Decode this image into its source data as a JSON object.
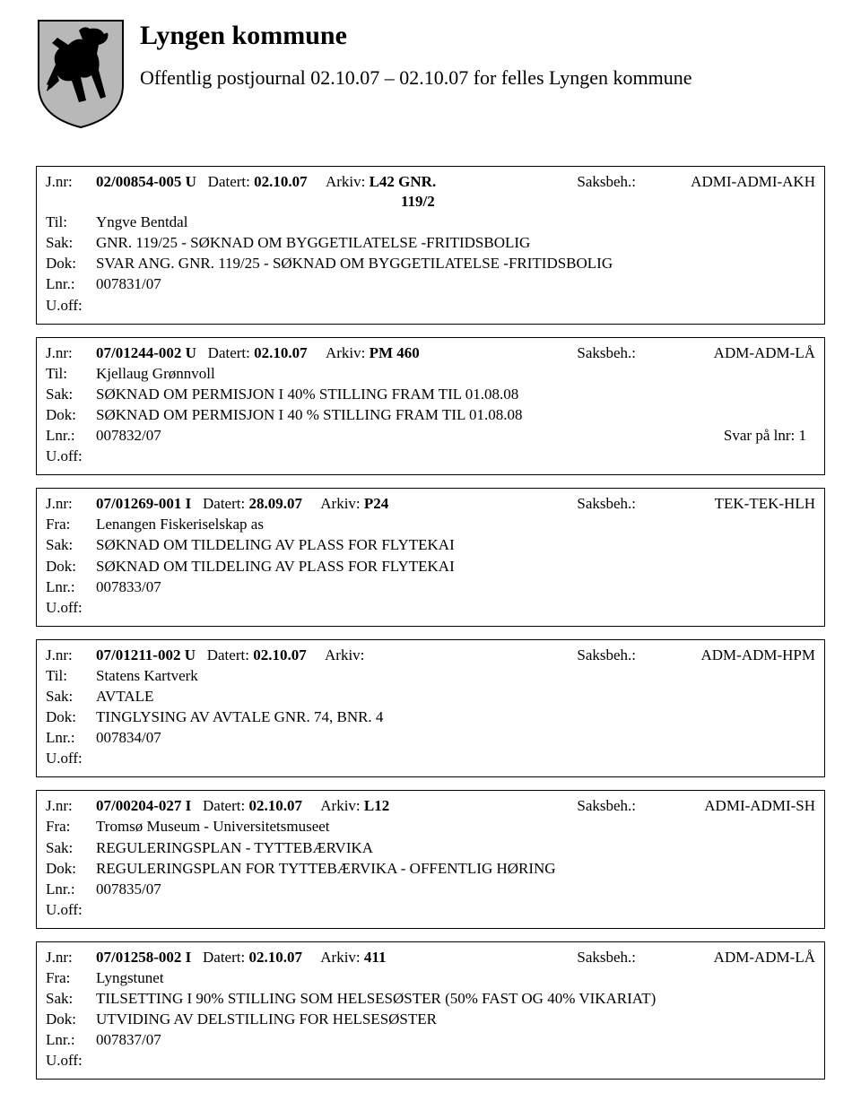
{
  "header": {
    "org_name": "Lyngen kommune",
    "subtitle": "Offentlig postjournal 02.10.07 – 02.10.07 for felles Lyngen kommune"
  },
  "labels": {
    "jnr": "J.nr:",
    "datert": "Datert:",
    "arkiv": "Arkiv:",
    "saksbeh": "Saksbeh.:",
    "til": "Til:",
    "fra": "Fra:",
    "sak": "Sak:",
    "dok": "Dok:",
    "lnr": "Lnr.:",
    "uoff": "U.off:"
  },
  "entries": [
    {
      "jnr": "02/00854-005 U",
      "datert": "02.10.07",
      "arkiv": "L42  GNR.",
      "arkiv_line2": "119/2",
      "saksbeh": "ADMI-ADMI-AKH",
      "party_label": "Til:",
      "party": "Yngve Bentdal",
      "sak": "GNR. 119/25 - SØKNAD OM BYGGETILATELSE -FRITIDSBOLIG",
      "dok": "SVAR ANG. GNR. 119/25 - SØKNAD OM BYGGETILATELSE -FRITIDSBOLIG",
      "lnr": "007831/07",
      "lnr_note": "",
      "uoff": ""
    },
    {
      "jnr": "07/01244-002 U",
      "datert": "02.10.07",
      "arkiv": "PM 460",
      "arkiv_line2": "",
      "saksbeh": "ADM-ADM-LÅ",
      "party_label": "Til:",
      "party": "Kjellaug Grønnvoll",
      "sak": "SØKNAD OM PERMISJON I 40% STILLING FRAM TIL 01.08.08",
      "dok": "SØKNAD OM PERMISJON I 40 % STILLING FRAM TIL 01.08.08",
      "lnr": "007832/07",
      "lnr_note": "Svar på lnr: 1",
      "uoff": ""
    },
    {
      "jnr": "07/01269-001 I",
      "datert": "28.09.07",
      "arkiv": "P24",
      "arkiv_line2": "",
      "saksbeh": "TEK-TEK-HLH",
      "party_label": "Fra:",
      "party": "Lenangen Fiskeriselskap as",
      "sak": "SØKNAD OM TILDELING AV PLASS FOR FLYTEKAI",
      "dok": "SØKNAD OM TILDELING AV PLASS FOR FLYTEKAI",
      "lnr": "007833/07",
      "lnr_note": "",
      "uoff": ""
    },
    {
      "jnr": "07/01211-002 U",
      "datert": "02.10.07",
      "arkiv": "",
      "arkiv_line2": "",
      "saksbeh": "ADM-ADM-HPM",
      "party_label": "Til:",
      "party": "Statens Kartverk",
      "sak": "AVTALE",
      "dok": "TINGLYSING AV AVTALE GNR. 74, BNR. 4",
      "lnr": "007834/07",
      "lnr_note": "",
      "uoff": ""
    },
    {
      "jnr": "07/00204-027 I",
      "datert": "02.10.07",
      "arkiv": "L12",
      "arkiv_line2": "",
      "saksbeh": "ADMI-ADMI-SH",
      "party_label": "Fra:",
      "party": "Tromsø Museum - Universitetsmuseet",
      "sak": "REGULERINGSPLAN - TYTTEBÆRVIKA",
      "dok": "REGULERINGSPLAN FOR TYTTEBÆRVIKA - OFFENTLIG HØRING",
      "lnr": "007835/07",
      "lnr_note": "",
      "uoff": ""
    },
    {
      "jnr": "07/01258-002 I",
      "datert": "02.10.07",
      "arkiv": "411",
      "arkiv_line2": "",
      "saksbeh": "ADM-ADM-LÅ",
      "party_label": "Fra:",
      "party": "Lyngstunet",
      "sak": "TILSETTING I 90% STILLING SOM HELSESØSTER (50% FAST OG 40% VIKARIAT)",
      "dok": "UTVIDING AV DELSTILLING FOR HELSESØSTER",
      "lnr": "007837/07",
      "lnr_note": "",
      "uoff": ""
    }
  ],
  "logo": {
    "shield_fill": "#b8b8b8",
    "shield_stroke": "#000000",
    "horse_fill": "#000000"
  }
}
